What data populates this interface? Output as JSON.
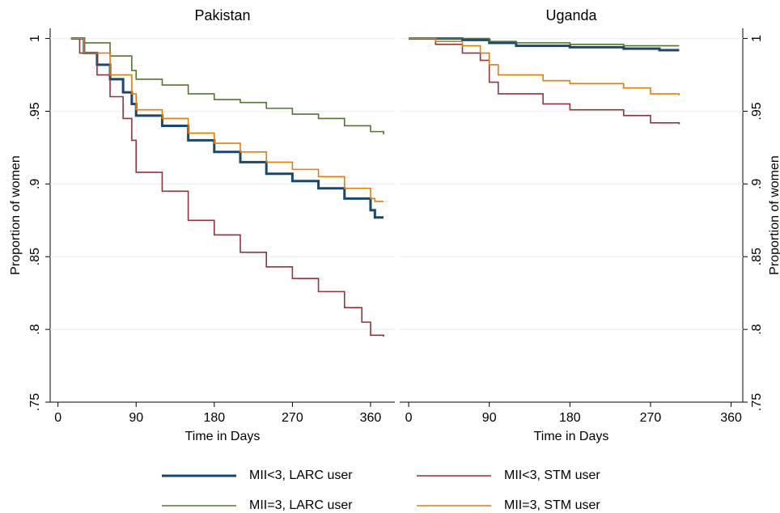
{
  "chart_data": [
    {
      "type": "line",
      "step": true,
      "title": "Pakistan",
      "xlabel": "Time in Days",
      "ylabel": "Proportion of women",
      "yaxis_side": "left",
      "xlim": [
        -9,
        388
      ],
      "ylim": [
        0.75,
        1.007
      ],
      "xticks": [
        0,
        90,
        180,
        270,
        360
      ],
      "yticks": [
        {
          "value": 1,
          "label": "1"
        },
        {
          "value": 0.95,
          "label": ".95"
        },
        {
          "value": 0.9,
          "label": ".9"
        },
        {
          "value": 0.85,
          "label": ".85"
        },
        {
          "value": 0.8,
          "label": ".8"
        },
        {
          "value": 0.75,
          "label": ".75"
        }
      ],
      "grid": true,
      "series": [
        {
          "name": "MII<3, LARC user",
          "color": "#1a476f",
          "x": [
            15,
            30,
            45,
            60,
            75,
            85,
            90,
            120,
            150,
            180,
            210,
            240,
            270,
            300,
            330,
            360,
            365,
            375
          ],
          "values": [
            1,
            0.99,
            0.982,
            0.972,
            0.963,
            0.955,
            0.947,
            0.94,
            0.93,
            0.922,
            0.915,
            0.907,
            0.902,
            0.897,
            0.89,
            0.882,
            0.877,
            0.877
          ]
        },
        {
          "name": "MII<3, STM user",
          "color": "#90353b",
          "x": [
            15,
            25,
            45,
            60,
            75,
            85,
            90,
            120,
            150,
            180,
            210,
            240,
            270,
            300,
            330,
            350,
            360,
            375
          ],
          "values": [
            1,
            0.99,
            0.975,
            0.96,
            0.945,
            0.93,
            0.908,
            0.895,
            0.875,
            0.865,
            0.853,
            0.843,
            0.835,
            0.826,
            0.815,
            0.805,
            0.796,
            0.795
          ]
        },
        {
          "name": "MII=3, LARC user",
          "color": "#55752f",
          "x": [
            15,
            30,
            60,
            85,
            90,
            120,
            150,
            180,
            210,
            240,
            270,
            300,
            330,
            360,
            375
          ],
          "values": [
            1,
            0.997,
            0.988,
            0.978,
            0.972,
            0.968,
            0.962,
            0.958,
            0.956,
            0.952,
            0.948,
            0.945,
            0.94,
            0.936,
            0.934
          ]
        },
        {
          "name": "MII=3, STM user",
          "color": "#e37e00",
          "x": [
            15,
            30,
            60,
            85,
            90,
            120,
            150,
            180,
            210,
            240,
            270,
            300,
            330,
            360,
            365,
            375
          ],
          "values": [
            1,
            0.99,
            0.975,
            0.962,
            0.951,
            0.945,
            0.935,
            0.928,
            0.922,
            0.915,
            0.91,
            0.905,
            0.897,
            0.89,
            0.888,
            0.888
          ]
        }
      ]
    },
    {
      "type": "line",
      "step": true,
      "title": "Uganda",
      "xlabel": "Time in Days",
      "ylabel": "Proportion of women",
      "yaxis_side": "right",
      "xlim": [
        -10,
        373
      ],
      "ylim": [
        0.75,
        1.007
      ],
      "xticks": [
        0,
        90,
        180,
        270,
        360
      ],
      "yticks": [
        {
          "value": 1,
          "label": "1"
        },
        {
          "value": 0.95,
          "label": ".95"
        },
        {
          "value": 0.9,
          "label": ".9"
        },
        {
          "value": 0.85,
          "label": ".85"
        },
        {
          "value": 0.8,
          "label": ".8"
        },
        {
          "value": 0.75,
          "label": ".75"
        }
      ],
      "grid": true,
      "series": [
        {
          "color": "#1a476f",
          "x": [
            0,
            60,
            90,
            120,
            180,
            240,
            280,
            302
          ],
          "values": [
            1,
            0.999,
            0.997,
            0.995,
            0.994,
            0.993,
            0.992,
            0.992
          ]
        },
        {
          "color": "#90353b",
          "x": [
            0,
            30,
            60,
            80,
            90,
            100,
            150,
            180,
            240,
            270,
            302
          ],
          "values": [
            1,
            0.996,
            0.99,
            0.985,
            0.97,
            0.962,
            0.955,
            0.951,
            0.947,
            0.942,
            0.941
          ]
        },
        {
          "color": "#55752f",
          "x": [
            0,
            90,
            120,
            180,
            240,
            302
          ],
          "values": [
            1,
            0.998,
            0.997,
            0.996,
            0.995,
            0.995
          ]
        },
        {
          "color": "#e37e00",
          "x": [
            0,
            30,
            60,
            80,
            90,
            100,
            150,
            180,
            240,
            270,
            302
          ],
          "values": [
            1,
            0.998,
            0.995,
            0.99,
            0.982,
            0.975,
            0.971,
            0.969,
            0.966,
            0.962,
            0.961
          ]
        }
      ]
    }
  ]
}
